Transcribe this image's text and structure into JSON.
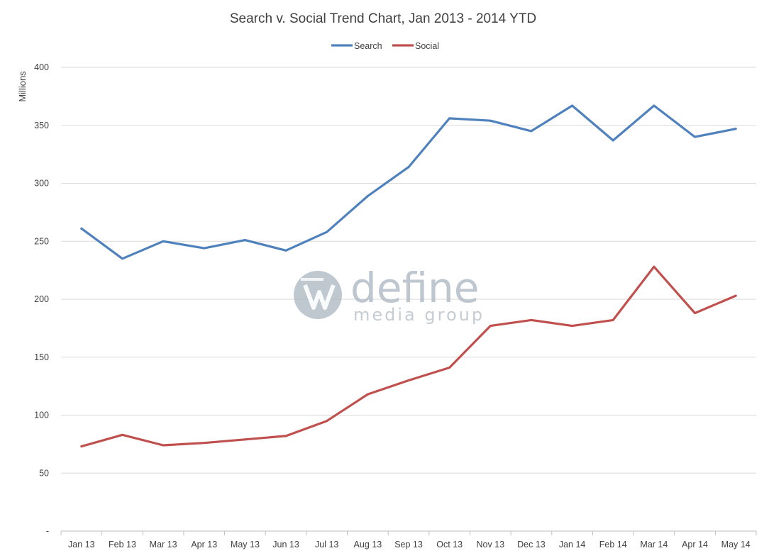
{
  "chart_data": {
    "type": "line",
    "title": "Search v. Social Trend Chart, Jan 2013 - 2014 YTD",
    "ylabel": "Millions",
    "xlabel": "",
    "ylim": [
      0,
      400
    ],
    "yticks": [
      0,
      50,
      100,
      150,
      200,
      250,
      300,
      350,
      400
    ],
    "ytick_labels": [
      "-",
      "50",
      "100",
      "150",
      "200",
      "250",
      "300",
      "350",
      "400"
    ],
    "grid": true,
    "legend": "top-center",
    "categories": [
      "Jan 13",
      "Feb 13",
      "Mar 13",
      "Apr 13",
      "May 13",
      "Jun 13",
      "Jul 13",
      "Aug 13",
      "Sep 13",
      "Oct 13",
      "Nov 13",
      "Dec 13",
      "Jan 14",
      "Feb 14",
      "Mar 14",
      "Apr 14",
      "May 14"
    ],
    "series": [
      {
        "name": "Search",
        "color": "#4f81bd",
        "values": [
          261,
          235,
          250,
          244,
          251,
          242,
          258,
          289,
          314,
          356,
          354,
          345,
          367,
          337,
          367,
          340,
          347
        ]
      },
      {
        "name": "Social",
        "color": "#c0504d",
        "values": [
          73,
          83,
          74,
          76,
          79,
          82,
          95,
          118,
          130,
          141,
          177,
          182,
          177,
          182,
          228,
          188,
          203
        ]
      }
    ],
    "watermark": {
      "line1": "define",
      "line2": "media group"
    }
  }
}
